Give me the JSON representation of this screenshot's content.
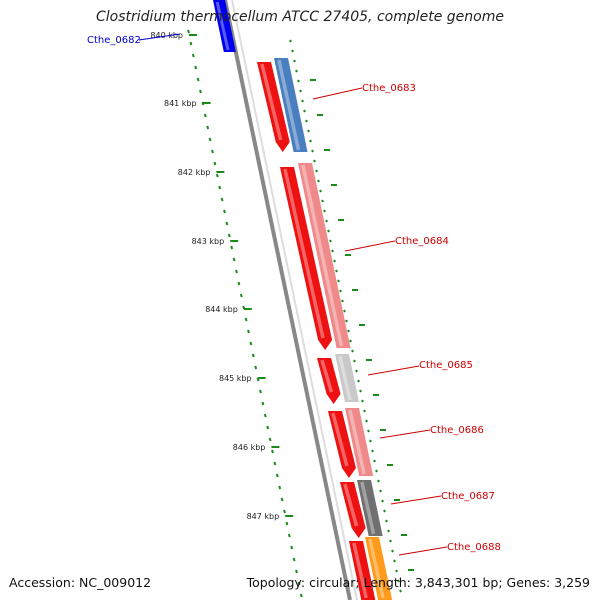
{
  "title": "Clostridium thermocellum ATCC 27405, complete genome",
  "accession": "Accession: NC_009012",
  "topology": "Topology: circular; Length: 3,843,301 bp; Genes: 3,259",
  "scale_labels": [
    "840 kbp",
    "841 kbp",
    "842 kbp",
    "843 kbp",
    "844 kbp",
    "845 kbp",
    "846 kbp",
    "847 kbp"
  ],
  "genes": [
    {
      "id": "Cthe_0682",
      "color": "#0000ee",
      "label_color": "#0000cc"
    },
    {
      "id": "Cthe_0683",
      "color": "#ee1111",
      "label_color": "#cc0000"
    },
    {
      "id": "Cthe_0684",
      "color": "#ee1111",
      "label_color": "#cc0000"
    },
    {
      "id": "Cthe_0685",
      "color": "#ee1111",
      "label_color": "#cc0000"
    },
    {
      "id": "Cthe_0686",
      "color": "#ee1111",
      "label_color": "#cc0000"
    },
    {
      "id": "Cthe_0687",
      "color": "#ee1111",
      "label_color": "#cc0000"
    },
    {
      "id": "Cthe_0688",
      "color": "#ee1111",
      "label_color": "#cc0000"
    }
  ],
  "outer_track_colors": [
    "#4a7fbf",
    "#f08a8a",
    "#c9c9c9",
    "#f08a8a",
    "#707070",
    "#ff9a1a"
  ],
  "colors": {
    "backbone": "#888888",
    "ticks": "#1a8a1a"
  }
}
